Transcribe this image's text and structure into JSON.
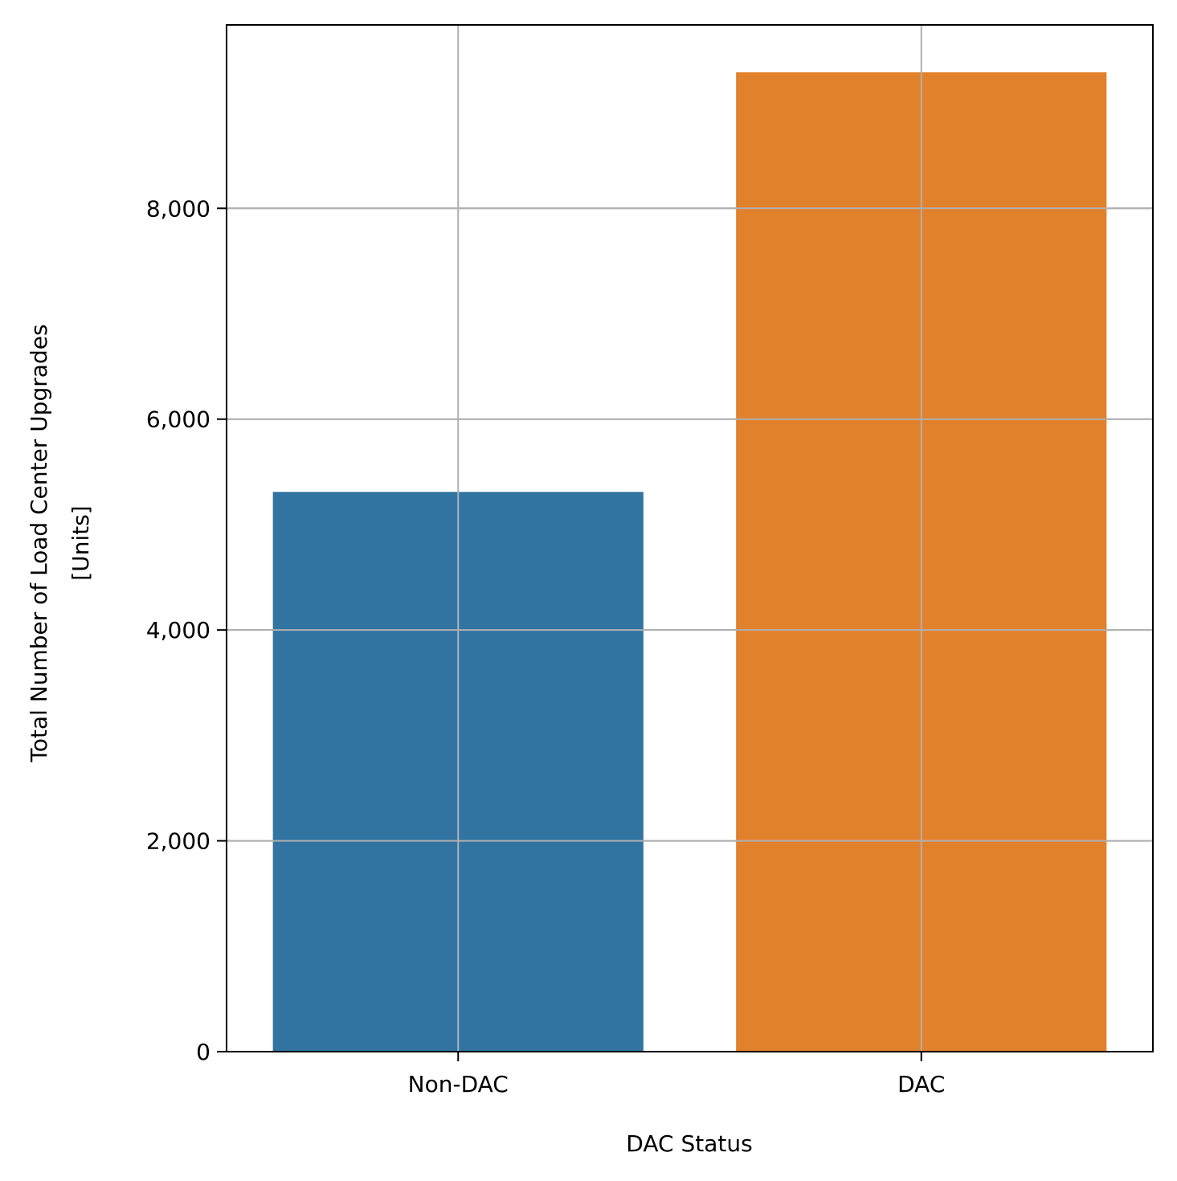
{
  "chart_data": {
    "type": "bar",
    "categories": [
      "Non-DAC",
      "DAC"
    ],
    "values": [
      5310,
      9290
    ],
    "colors": [
      "#3274a1",
      "#e1812c"
    ],
    "title": "",
    "xlabel": "DAC Status",
    "ylabel_lines": [
      "Total Number of Load Center Upgrades",
      "[Units]"
    ],
    "ylim": [
      0,
      9740
    ],
    "yticks": [
      0,
      2000,
      4000,
      6000,
      8000
    ],
    "ytick_labels": [
      "0",
      "2,000",
      "4,000",
      "6,000",
      "8,000"
    ],
    "grid": true,
    "legend": "none"
  }
}
